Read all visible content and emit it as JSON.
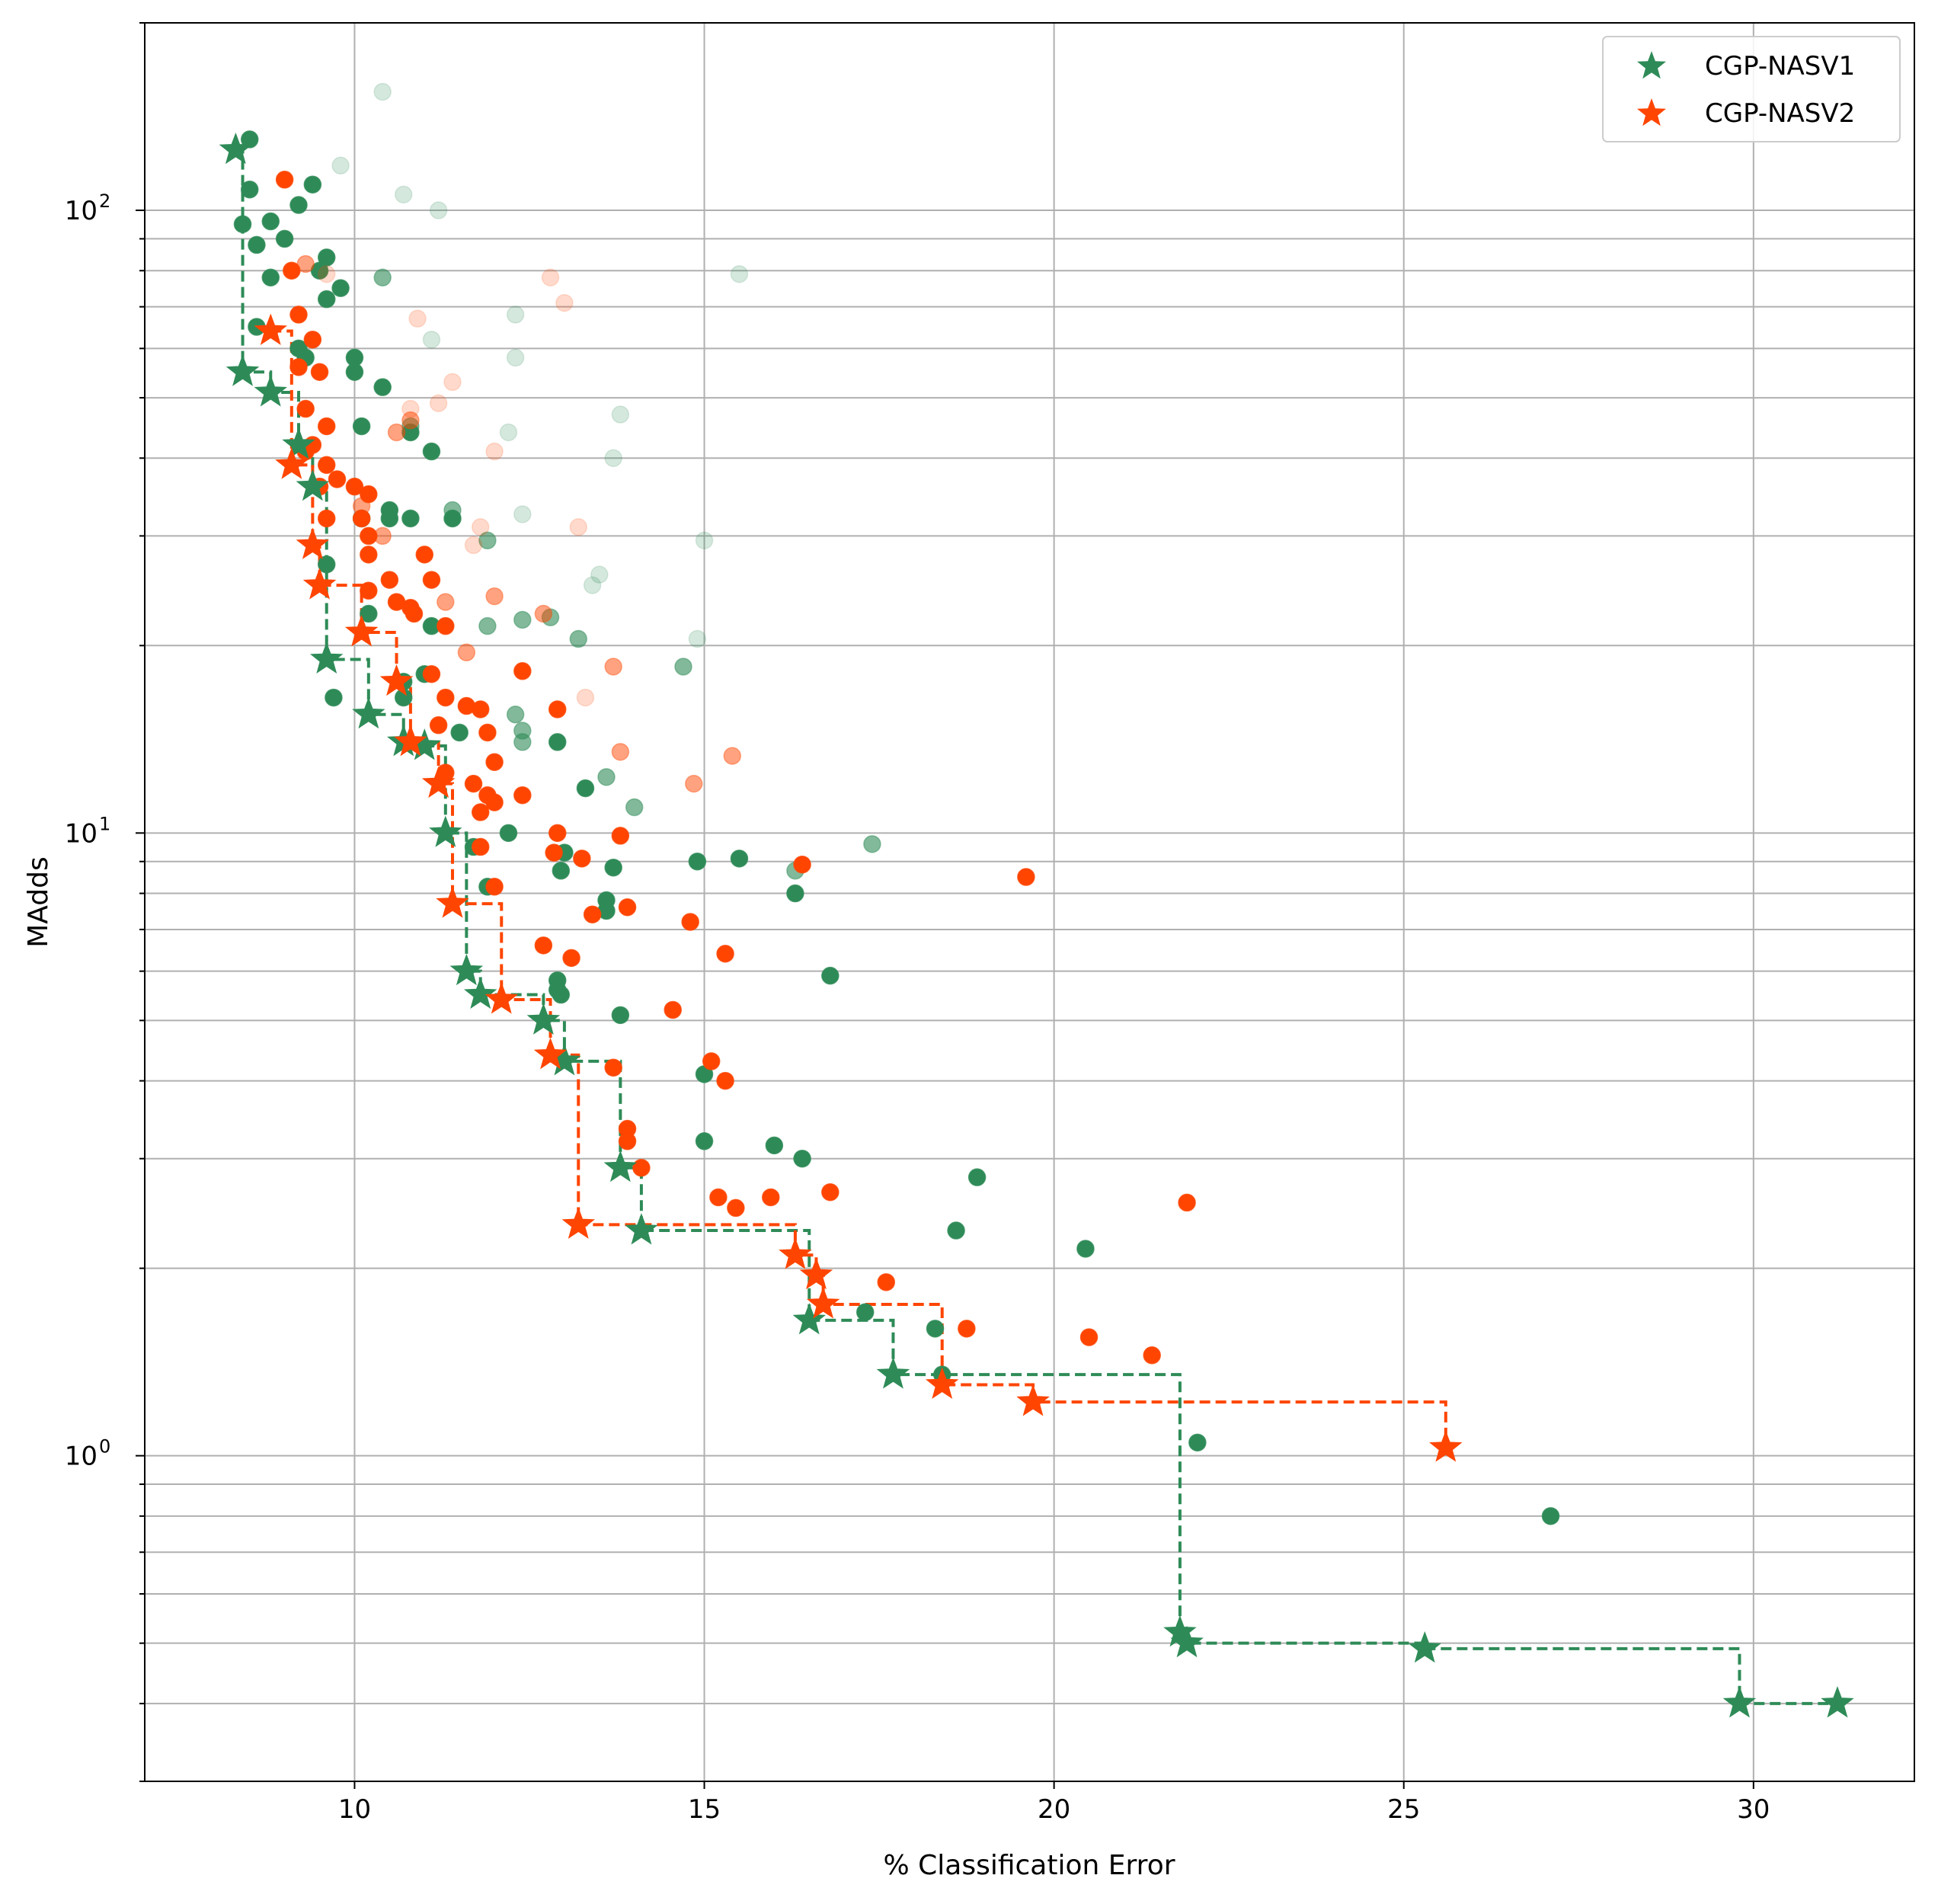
{
  "chart_data": {
    "type": "scatter",
    "xlabel": "% Classification Error",
    "ylabel": "MAdds",
    "xlim": [
      7.0,
      32.3
    ],
    "ylim": [
      0.3,
      200
    ],
    "yscale": "log",
    "grid": true,
    "grid_minor_y": true,
    "legend": "top-right",
    "x_ticks": [
      10,
      15,
      20,
      25,
      30
    ],
    "x_tick_labels": [
      "10",
      "15",
      "20",
      "25",
      "30"
    ],
    "y_ticks": [
      1,
      10,
      100
    ],
    "y_tick_bases": [
      "10",
      "10",
      "10"
    ],
    "y_tick_exponents": [
      "0",
      "1",
      "2"
    ],
    "series": [
      {
        "name": "CGP-NASV1",
        "color": "#2e8b57",
        "pareto": [
          [
            8.3,
            125
          ],
          [
            8.4,
            55
          ],
          [
            8.8,
            51
          ],
          [
            9.2,
            42
          ],
          [
            9.4,
            36
          ],
          [
            9.6,
            19
          ],
          [
            10.2,
            15.5
          ],
          [
            10.7,
            14
          ],
          [
            11.0,
            13.8
          ],
          [
            11.3,
            10
          ],
          [
            11.6,
            6
          ],
          [
            11.8,
            5.5
          ],
          [
            12.7,
            5
          ],
          [
            13.0,
            4.3
          ],
          [
            13.8,
            2.9
          ],
          [
            14.1,
            2.3
          ],
          [
            16.5,
            1.65
          ],
          [
            17.7,
            1.35
          ],
          [
            21.8,
            0.52
          ],
          [
            21.9,
            0.5
          ],
          [
            25.3,
            0.49
          ],
          [
            29.8,
            0.4
          ],
          [
            31.2,
            0.4
          ]
        ],
        "points": [
          [
            8.5,
            130,
            1
          ],
          [
            8.5,
            108,
            1
          ],
          [
            8.4,
            95,
            1
          ],
          [
            8.6,
            88,
            1
          ],
          [
            8.8,
            78,
            1
          ],
          [
            9.0,
            90,
            1
          ],
          [
            8.8,
            96,
            1
          ],
          [
            9.2,
            102,
            1
          ],
          [
            9.4,
            110,
            1
          ],
          [
            9.5,
            80,
            1
          ],
          [
            9.6,
            84,
            1
          ],
          [
            9.8,
            75,
            1
          ],
          [
            9.6,
            72,
            1
          ],
          [
            8.6,
            65,
            1
          ],
          [
            9.2,
            60,
            1
          ],
          [
            9.3,
            58,
            1
          ],
          [
            10.0,
            58,
            1
          ],
          [
            10.0,
            55,
            1
          ],
          [
            10.4,
            52,
            1
          ],
          [
            10.1,
            45,
            1
          ],
          [
            10.8,
            44,
            1
          ],
          [
            11.1,
            41,
            1
          ],
          [
            10.5,
            33,
            1
          ],
          [
            10.5,
            32,
            1
          ],
          [
            11.4,
            32,
            1
          ],
          [
            10.8,
            32,
            1
          ],
          [
            10.1,
            32,
            1
          ],
          [
            9.6,
            27,
            1
          ],
          [
            10.2,
            22.5,
            1
          ],
          [
            11.1,
            21.5,
            1
          ],
          [
            11.0,
            18,
            1
          ],
          [
            10.7,
            17.5,
            1
          ],
          [
            10.7,
            16.5,
            1
          ],
          [
            9.7,
            16.5,
            1
          ],
          [
            11.5,
            14.5,
            1
          ],
          [
            12.9,
            14,
            1
          ],
          [
            11.9,
            8.2,
            1
          ],
          [
            12.2,
            10,
            1
          ],
          [
            11.7,
            9.5,
            1
          ],
          [
            13.3,
            11.8,
            1
          ],
          [
            13.0,
            9.3,
            1
          ],
          [
            12.95,
            8.7,
            1
          ],
          [
            13.7,
            8.8,
            1
          ],
          [
            13.6,
            7.8,
            1
          ],
          [
            13.6,
            7.5,
            1
          ],
          [
            12.9,
            5.8,
            1
          ],
          [
            12.9,
            5.6,
            1
          ],
          [
            12.95,
            5.5,
            1
          ],
          [
            13.8,
            5.1,
            1
          ],
          [
            14.9,
            9,
            1
          ],
          [
            15.5,
            9.1,
            1
          ],
          [
            16.3,
            8.0,
            1
          ],
          [
            16.8,
            5.9,
            1
          ],
          [
            15.0,
            4.1,
            1
          ],
          [
            15.0,
            3.2,
            1
          ],
          [
            16.0,
            3.15,
            1
          ],
          [
            16.4,
            3.0,
            1
          ],
          [
            18.9,
            2.8,
            1
          ],
          [
            18.6,
            2.3,
            1
          ],
          [
            20.45,
            2.15,
            1
          ],
          [
            17.3,
            1.7,
            1
          ],
          [
            18.3,
            1.6,
            1
          ],
          [
            18.4,
            1.35,
            1
          ],
          [
            22.05,
            1.05,
            1
          ],
          [
            27.1,
            0.8,
            1
          ],
          [
            11.4,
            33,
            0.6
          ],
          [
            11.9,
            29.5,
            0.6
          ],
          [
            12.4,
            22,
            0.6
          ],
          [
            12.8,
            22.2,
            0.6
          ],
          [
            11.9,
            21.5,
            0.6
          ],
          [
            13.2,
            20.5,
            0.6
          ],
          [
            14.7,
            18.5,
            0.6
          ],
          [
            12.3,
            15.5,
            0.6
          ],
          [
            12.4,
            14.6,
            0.6
          ],
          [
            12.4,
            14.0,
            0.6
          ],
          [
            13.6,
            12.3,
            0.6
          ],
          [
            14.0,
            11.0,
            0.6
          ],
          [
            16.3,
            8.7,
            0.6
          ],
          [
            17.4,
            9.6,
            0.6
          ],
          [
            10.8,
            45,
            0.6
          ],
          [
            10.4,
            78,
            0.6
          ],
          [
            9.8,
            118,
            0.2
          ],
          [
            10.7,
            106,
            0.2
          ],
          [
            11.2,
            100,
            0.2
          ],
          [
            10.4,
            155,
            0.2
          ],
          [
            15.5,
            79,
            0.2
          ],
          [
            12.3,
            68,
            0.2
          ],
          [
            11.1,
            62,
            0.2
          ],
          [
            12.3,
            58,
            0.2
          ],
          [
            13.8,
            47,
            0.2
          ],
          [
            12.2,
            44,
            0.2
          ],
          [
            13.7,
            40,
            0.2
          ],
          [
            12.4,
            32.5,
            0.2
          ],
          [
            15.0,
            29.5,
            0.2
          ],
          [
            13.5,
            26,
            0.2
          ],
          [
            13.4,
            25,
            0.2
          ],
          [
            14.9,
            20.5,
            0.2
          ]
        ]
      },
      {
        "name": "CGP-NASV2",
        "color": "#ff4500",
        "pareto": [
          [
            8.8,
            64
          ],
          [
            9.1,
            39
          ],
          [
            9.4,
            29
          ],
          [
            9.5,
            25
          ],
          [
            10.1,
            21
          ],
          [
            10.6,
            17.5
          ],
          [
            10.8,
            14
          ],
          [
            11.2,
            12
          ],
          [
            11.4,
            7.7
          ],
          [
            12.1,
            5.4
          ],
          [
            12.8,
            4.4
          ],
          [
            13.2,
            2.35
          ],
          [
            16.3,
            2.1
          ],
          [
            16.6,
            1.95
          ],
          [
            16.7,
            1.75
          ],
          [
            18.4,
            1.3
          ],
          [
            19.7,
            1.22
          ],
          [
            25.6,
            1.03
          ]
        ],
        "points": [
          [
            9.0,
            112,
            1
          ],
          [
            9.1,
            80,
            1
          ],
          [
            9.2,
            68,
            1
          ],
          [
            9.4,
            62,
            1
          ],
          [
            9.2,
            56,
            1
          ],
          [
            9.5,
            55,
            1
          ],
          [
            9.3,
            48,
            1
          ],
          [
            9.6,
            45,
            1
          ],
          [
            9.4,
            42,
            1
          ],
          [
            9.3,
            41,
            1
          ],
          [
            9.6,
            39,
            1
          ],
          [
            9.5,
            36,
            1
          ],
          [
            9.6,
            32,
            1
          ],
          [
            9.75,
            37,
            1
          ],
          [
            10.0,
            36,
            1
          ],
          [
            10.2,
            35,
            1
          ],
          [
            10.1,
            32,
            1
          ],
          [
            10.2,
            30,
            1
          ],
          [
            10.2,
            28,
            1
          ],
          [
            11.0,
            28,
            1
          ],
          [
            10.5,
            25.5,
            1
          ],
          [
            10.2,
            24.5,
            1
          ],
          [
            11.1,
            25.5,
            1
          ],
          [
            10.6,
            23.5,
            1
          ],
          [
            10.8,
            23,
            1
          ],
          [
            10.85,
            22.5,
            1
          ],
          [
            11.3,
            21.5,
            1
          ],
          [
            11.1,
            18,
            1
          ],
          [
            11.3,
            16.5,
            1
          ],
          [
            11.6,
            16,
            1
          ],
          [
            11.8,
            15.8,
            1
          ],
          [
            12.4,
            18.2,
            1
          ],
          [
            11.2,
            14.9,
            1
          ],
          [
            11.9,
            14.5,
            1
          ],
          [
            12.0,
            13,
            1
          ],
          [
            12.9,
            15.8,
            1
          ],
          [
            11.3,
            12.5,
            1
          ],
          [
            11.7,
            12.0,
            1
          ],
          [
            11.9,
            11.5,
            1
          ],
          [
            12.0,
            11.2,
            1
          ],
          [
            12.4,
            11.5,
            1
          ],
          [
            11.8,
            10.8,
            1
          ],
          [
            12.9,
            10.0,
            1
          ],
          [
            12.85,
            9.3,
            1
          ],
          [
            13.25,
            9.1,
            1
          ],
          [
            13.8,
            9.9,
            1
          ],
          [
            13.4,
            7.4,
            1
          ],
          [
            13.9,
            7.6,
            1
          ],
          [
            12.0,
            8.2,
            1
          ],
          [
            12.7,
            6.6,
            1
          ],
          [
            13.1,
            6.3,
            1
          ],
          [
            11.8,
            9.5,
            1
          ],
          [
            14.8,
            7.2,
            1
          ],
          [
            15.3,
            6.4,
            1
          ],
          [
            14.55,
            5.2,
            1
          ],
          [
            15.1,
            4.3,
            1
          ],
          [
            15.3,
            4.0,
            1
          ],
          [
            13.7,
            4.2,
            1
          ],
          [
            13.9,
            3.35,
            1
          ],
          [
            13.9,
            3.2,
            1
          ],
          [
            14.1,
            2.9,
            1
          ],
          [
            15.2,
            2.6,
            1
          ],
          [
            15.45,
            2.5,
            1
          ],
          [
            15.95,
            2.6,
            1
          ],
          [
            16.4,
            8.9,
            1
          ],
          [
            16.8,
            2.65,
            1
          ],
          [
            17.6,
            1.9,
            1
          ],
          [
            18.75,
            1.6,
            1
          ],
          [
            19.6,
            8.5,
            1
          ],
          [
            20.5,
            1.55,
            1
          ],
          [
            21.4,
            1.45,
            1
          ],
          [
            21.9,
            2.55,
            1
          ],
          [
            10.1,
            33.5,
            0.5
          ],
          [
            10.4,
            30,
            0.5
          ],
          [
            10.8,
            46,
            0.5
          ],
          [
            10.6,
            44,
            0.5
          ],
          [
            11.3,
            23.5,
            0.5
          ],
          [
            11.6,
            19.5,
            0.5
          ],
          [
            12.0,
            24,
            0.5
          ],
          [
            12.7,
            22.5,
            0.5
          ],
          [
            13.7,
            18.5,
            0.5
          ],
          [
            13.8,
            13.5,
            0.5
          ],
          [
            14.85,
            12,
            0.5
          ],
          [
            15.4,
            13.3,
            0.5
          ],
          [
            9.3,
            82,
            0.5
          ],
          [
            10.9,
            67,
            0.2
          ],
          [
            11.4,
            53,
            0.2
          ],
          [
            12.0,
            41,
            0.2
          ],
          [
            11.8,
            31,
            0.2
          ],
          [
            11.7,
            29,
            0.2
          ],
          [
            12.8,
            78,
            0.2
          ],
          [
            13.0,
            71,
            0.2
          ],
          [
            10.8,
            48,
            0.2
          ],
          [
            11.2,
            49,
            0.2
          ],
          [
            13.2,
            31,
            0.2
          ],
          [
            13.3,
            16.5,
            0.2
          ],
          [
            9.6,
            79,
            0.2
          ]
        ]
      }
    ]
  }
}
